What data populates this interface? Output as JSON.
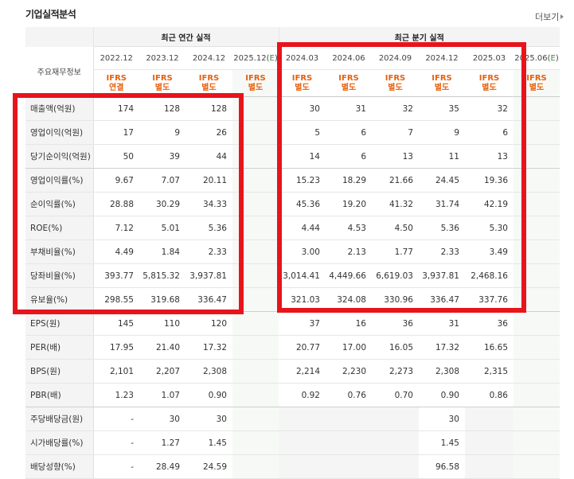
{
  "title": "기업실적분석",
  "more_link": "더보기",
  "header": {
    "row_label": "주요재무정보",
    "annual_group": "최근 연간 실적",
    "quarter_group": "최근 분기 실적",
    "annual_periods": [
      "2022.12",
      "2023.12",
      "2024.12",
      "2025.12(E)"
    ],
    "quarter_periods": [
      "2024.03",
      "2024.06",
      "2024.09",
      "2024.12",
      "2025.03",
      "2025.06(E)"
    ],
    "annual_types": [
      {
        "line1": "IFRS",
        "line2": "연결"
      },
      {
        "line1": "IFRS",
        "line2": "별도"
      },
      {
        "line1": "IFRS",
        "line2": "별도"
      },
      {
        "line1": "IFRS",
        "line2": "별도"
      }
    ],
    "quarter_types": [
      {
        "line1": "IFRS",
        "line2": "별도"
      },
      {
        "line1": "IFRS",
        "line2": "별도"
      },
      {
        "line1": "IFRS",
        "line2": "별도"
      },
      {
        "line1": "IFRS",
        "line2": "별도"
      },
      {
        "line1": "IFRS",
        "line2": "별도"
      },
      {
        "line1": "IFRS",
        "line2": "별도"
      }
    ]
  },
  "rows": [
    {
      "label": "매출액(억원)",
      "annual": [
        "174",
        "128",
        "128",
        ""
      ],
      "quarter": [
        "30",
        "31",
        "32",
        "35",
        "32",
        ""
      ]
    },
    {
      "label": "영업이익(억원)",
      "annual": [
        "17",
        "9",
        "26",
        ""
      ],
      "quarter": [
        "5",
        "6",
        "7",
        "9",
        "6",
        ""
      ]
    },
    {
      "label": "당기순이익(억원)",
      "annual": [
        "50",
        "39",
        "44",
        ""
      ],
      "quarter": [
        "14",
        "6",
        "13",
        "11",
        "13",
        ""
      ]
    },
    {
      "label": "영업이익률(%)",
      "annual": [
        "9.67",
        "7.07",
        "20.11",
        ""
      ],
      "quarter": [
        "15.23",
        "18.29",
        "21.66",
        "24.45",
        "19.36",
        ""
      ]
    },
    {
      "label": "순이익률(%)",
      "annual": [
        "28.88",
        "30.29",
        "34.33",
        ""
      ],
      "quarter": [
        "45.36",
        "19.20",
        "41.32",
        "31.74",
        "42.19",
        ""
      ]
    },
    {
      "label": "ROE(%)",
      "annual": [
        "7.12",
        "5.01",
        "5.36",
        ""
      ],
      "quarter": [
        "4.44",
        "4.53",
        "4.50",
        "5.36",
        "5.30",
        ""
      ]
    },
    {
      "label": "부채비율(%)",
      "annual": [
        "4.49",
        "1.84",
        "2.33",
        ""
      ],
      "quarter": [
        "3.00",
        "2.13",
        "1.77",
        "2.33",
        "3.49",
        ""
      ]
    },
    {
      "label": "당좌비율(%)",
      "annual": [
        "393.77",
        "5,815.32",
        "3,937.81",
        ""
      ],
      "quarter": [
        "3,014.41",
        "4,449.66",
        "6,619.03",
        "3,937.81",
        "2,468.16",
        ""
      ]
    },
    {
      "label": "유보율(%)",
      "annual": [
        "298.55",
        "319.68",
        "336.47",
        ""
      ],
      "quarter": [
        "321.03",
        "324.08",
        "330.96",
        "336.47",
        "337.76",
        ""
      ]
    },
    {
      "label": "EPS(원)",
      "annual": [
        "145",
        "110",
        "120",
        ""
      ],
      "quarter": [
        "37",
        "16",
        "36",
        "31",
        "36",
        ""
      ]
    },
    {
      "label": "PER(배)",
      "annual": [
        "17.95",
        "21.40",
        "17.32",
        ""
      ],
      "quarter": [
        "20.77",
        "17.00",
        "16.05",
        "17.32",
        "16.65",
        ""
      ]
    },
    {
      "label": "BPS(원)",
      "annual": [
        "2,101",
        "2,207",
        "2,308",
        ""
      ],
      "quarter": [
        "2,214",
        "2,230",
        "2,273",
        "2,308",
        "2,315",
        ""
      ]
    },
    {
      "label": "PBR(배)",
      "annual": [
        "1.23",
        "1.07",
        "0.90",
        ""
      ],
      "quarter": [
        "0.92",
        "0.76",
        "0.70",
        "0.90",
        "0.86",
        ""
      ]
    },
    {
      "label": "주당배당금(원)",
      "annual": [
        "-",
        "30",
        "30",
        ""
      ],
      "quarter": [
        "",
        "",
        "",
        "30",
        "",
        ""
      ]
    },
    {
      "label": "시가배당률(%)",
      "annual": [
        "-",
        "1.27",
        "1.45",
        ""
      ],
      "quarter": [
        "",
        "",
        "",
        "1.45",
        "",
        ""
      ]
    },
    {
      "label": "배당성향(%)",
      "annual": [
        "-",
        "28.49",
        "24.59",
        ""
      ],
      "quarter": [
        "",
        "",
        "",
        "96.58",
        "",
        ""
      ]
    }
  ],
  "colors": {
    "highlight_box": "#e8141c",
    "ifrs_label": "#e8600c",
    "estimate_label": "#3a8a3a"
  }
}
